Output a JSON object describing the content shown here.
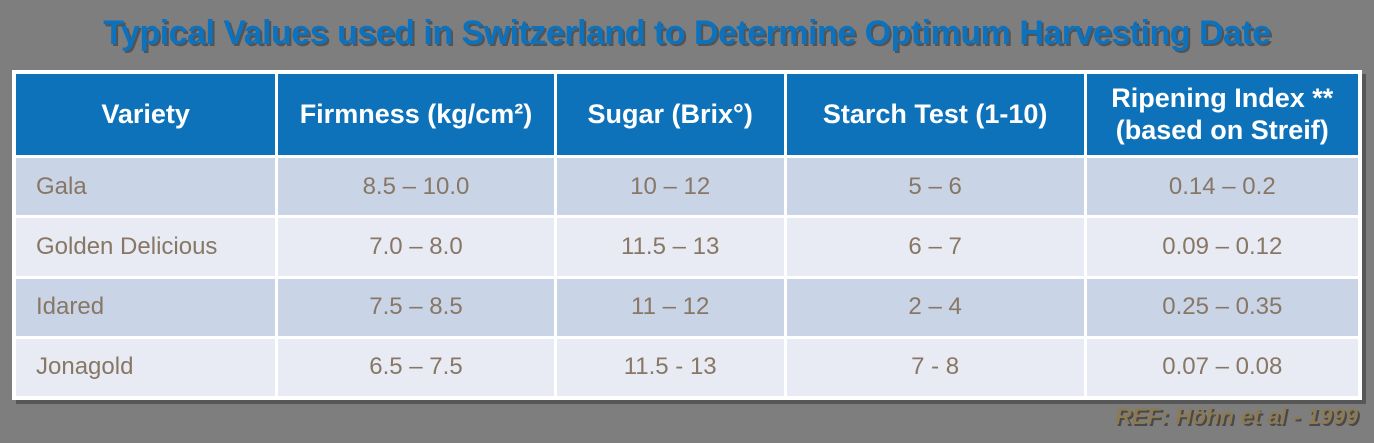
{
  "title": "Typical Values used in Switzerland to Determine Optimum Harvesting Date",
  "table": {
    "headers": [
      {
        "line1": "Variety"
      },
      {
        "line1": "Firmness (kg/cm²)"
      },
      {
        "line1": "Sugar (Brix°)"
      },
      {
        "line1": "Starch Test (1-10)"
      },
      {
        "line1": "Ripening Index **",
        "line2": "(based on Streif)"
      }
    ],
    "rows": [
      {
        "cells": [
          "Gala",
          "8.5 – 10.0",
          "10 – 12",
          "5 – 6",
          "0.14 – 0.2"
        ]
      },
      {
        "cells": [
          "Golden Delicious",
          "7.0 – 8.0",
          "11.5 – 13",
          "6 – 7",
          "0.09 – 0.12"
        ]
      },
      {
        "cells": [
          "Idared",
          "7.5 – 8.5",
          "11 – 12",
          "2 – 4",
          "0.25 – 0.35"
        ]
      },
      {
        "cells": [
          "Jonagold",
          "6.5 – 7.5",
          "11.5 - 13",
          "7 - 8",
          "0.07 – 0.08"
        ]
      }
    ]
  },
  "footer": {
    "reference": "REF: Höhn et al - 1999"
  },
  "colors": {
    "background": "#7E7E7E",
    "title_blue": "#0C72BE",
    "header_blue": "#0D72BA",
    "row_odd": "#CAD4E7",
    "row_even": "#E8EBF4",
    "cell_text": "#87776A",
    "reference_text": "#8C7A55"
  }
}
